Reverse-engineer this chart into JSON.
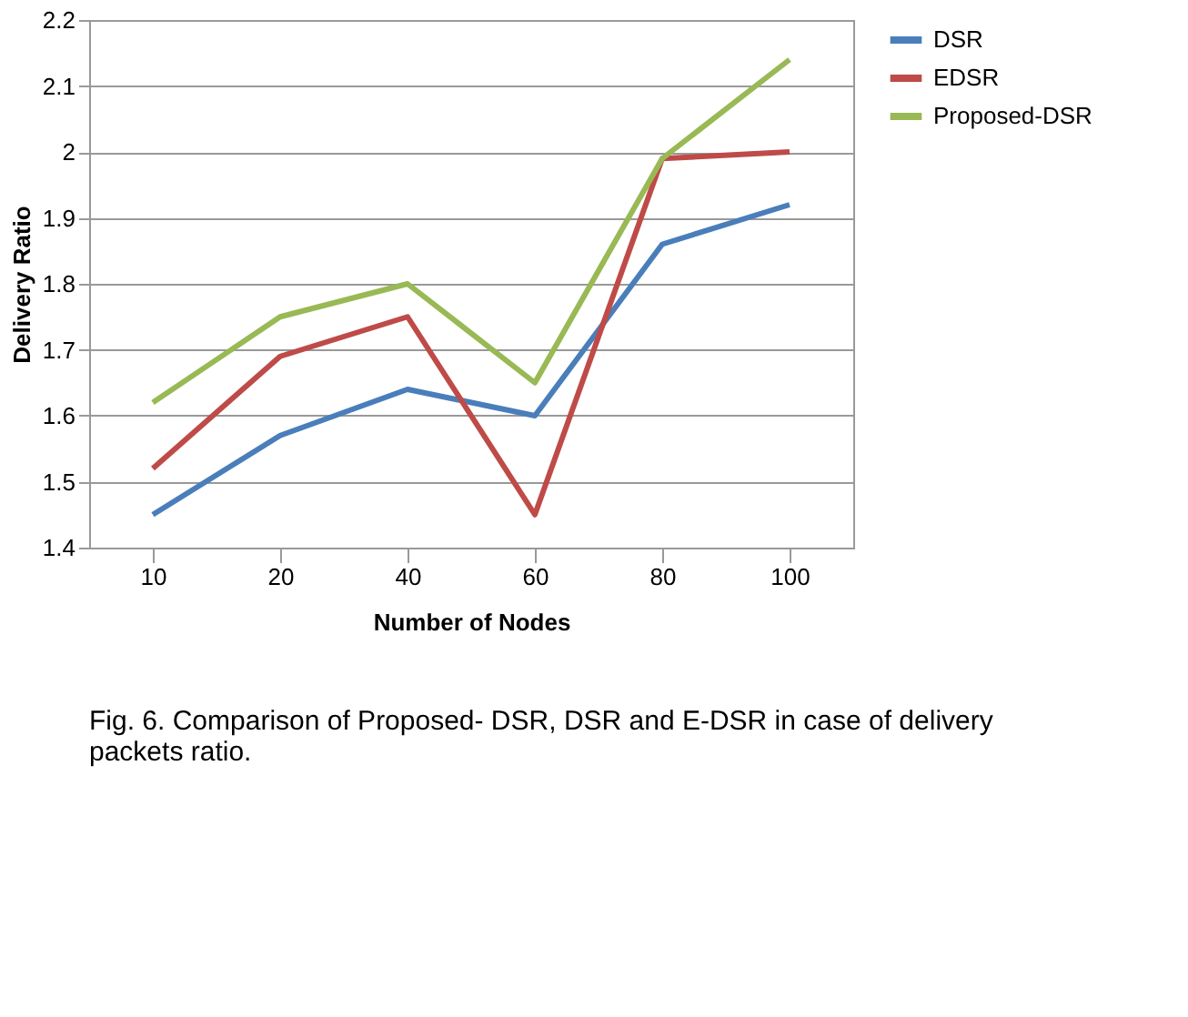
{
  "chart_data": {
    "type": "line",
    "xlabel": "Number of Nodes",
    "ylabel": "Delivery Ratio",
    "categories": [
      "10",
      "20",
      "40",
      "60",
      "80",
      "100"
    ],
    "series": [
      {
        "name": "DSR",
        "color": "#4a7ebb",
        "values": [
          1.45,
          1.57,
          1.64,
          1.6,
          1.86,
          1.92
        ]
      },
      {
        "name": "EDSR",
        "color": "#be4b48",
        "values": [
          1.52,
          1.69,
          1.75,
          1.45,
          1.99,
          2.0
        ]
      },
      {
        "name": "Proposed-DSR",
        "color": "#98b954",
        "values": [
          1.62,
          1.75,
          1.8,
          1.65,
          1.99,
          2.14
        ]
      }
    ],
    "ylim": [
      1.4,
      2.2
    ],
    "yticks": [
      1.4,
      1.5,
      1.6,
      1.7,
      1.8,
      1.9,
      2,
      2.1,
      2.2
    ],
    "grid": "y",
    "legend": "right",
    "marker": "none",
    "line_style": "solid",
    "annotations": [
      "Fig. 6. Comparison of Proposed- DSR, DSR and E-DSR in case of delivery packets ratio."
    ]
  }
}
